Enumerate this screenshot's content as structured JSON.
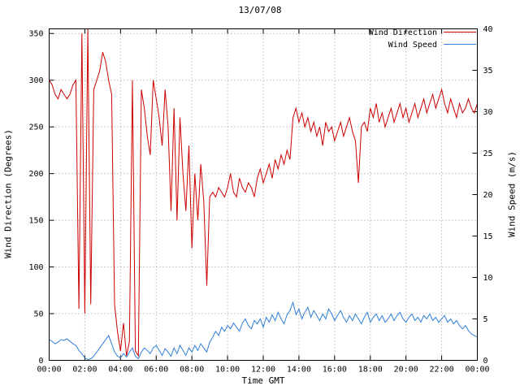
{
  "header": {
    "title": "13/07/08"
  },
  "chart_data": {
    "type": "line",
    "title": "13/07/08",
    "xlabel": "Time GMT",
    "grid": true,
    "legend_position": "top-right-inside",
    "x_range_minutes": [
      0,
      1440
    ],
    "x_tick_minutes": [
      0,
      120,
      240,
      360,
      480,
      600,
      720,
      840,
      960,
      1080,
      1200,
      1320,
      1440
    ],
    "x_tick_labels": [
      "00:00",
      "02:00",
      "04:00",
      "06:00",
      "08:00",
      "10:00",
      "12:00",
      "14:00",
      "16:00",
      "18:00",
      "20:00",
      "22:00",
      "00:00"
    ],
    "left_axis": {
      "label": "Wind Direction (Degrees)",
      "range": [
        0,
        355
      ],
      "ticks": [
        0,
        50,
        100,
        150,
        200,
        250,
        300,
        350
      ]
    },
    "right_axis": {
      "label": "Wind Speed (m/s)",
      "range": [
        0,
        40
      ],
      "ticks": [
        0,
        5,
        10,
        15,
        20,
        25,
        30,
        35,
        40
      ]
    },
    "x_minutes": [
      0,
      10,
      20,
      30,
      40,
      50,
      60,
      70,
      80,
      90,
      100,
      110,
      120,
      130,
      140,
      150,
      160,
      170,
      180,
      190,
      200,
      210,
      220,
      230,
      240,
      250,
      260,
      270,
      280,
      290,
      300,
      310,
      320,
      330,
      340,
      350,
      360,
      370,
      380,
      390,
      400,
      410,
      420,
      430,
      440,
      450,
      460,
      470,
      480,
      490,
      500,
      510,
      520,
      530,
      540,
      550,
      560,
      570,
      580,
      590,
      600,
      610,
      620,
      630,
      640,
      650,
      660,
      670,
      680,
      690,
      700,
      710,
      720,
      730,
      740,
      750,
      760,
      770,
      780,
      790,
      800,
      810,
      820,
      830,
      840,
      850,
      860,
      870,
      880,
      890,
      900,
      910,
      920,
      930,
      940,
      950,
      960,
      970,
      980,
      990,
      1000,
      1010,
      1020,
      1030,
      1040,
      1050,
      1060,
      1070,
      1080,
      1090,
      1100,
      1110,
      1120,
      1130,
      1140,
      1150,
      1160,
      1170,
      1180,
      1190,
      1200,
      1210,
      1220,
      1230,
      1240,
      1250,
      1260,
      1270,
      1280,
      1290,
      1300,
      1310,
      1320,
      1330,
      1340,
      1350,
      1360,
      1370,
      1380,
      1390,
      1400,
      1410,
      1420,
      1430,
      1440
    ],
    "series": [
      {
        "name": "Wind Direction",
        "axis": "left",
        "color": "#cc0000",
        "values": [
          300,
          295,
          285,
          280,
          290,
          285,
          280,
          285,
          295,
          300,
          55,
          350,
          50,
          355,
          60,
          290,
          300,
          310,
          330,
          320,
          300,
          285,
          60,
          30,
          10,
          40,
          5,
          20,
          300,
          10,
          5,
          290,
          270,
          240,
          220,
          300,
          280,
          260,
          230,
          290,
          250,
          160,
          270,
          150,
          260,
          200,
          160,
          230,
          120,
          200,
          150,
          210,
          170,
          80,
          175,
          180,
          175,
          185,
          180,
          175,
          185,
          200,
          180,
          175,
          195,
          185,
          180,
          190,
          185,
          175,
          195,
          205,
          190,
          200,
          210,
          195,
          215,
          205,
          220,
          210,
          225,
          215,
          260,
          270,
          255,
          265,
          250,
          260,
          245,
          255,
          240,
          250,
          230,
          255,
          245,
          250,
          235,
          245,
          255,
          240,
          250,
          260,
          245,
          235,
          190,
          250,
          255,
          245,
          270,
          260,
          275,
          255,
          265,
          250,
          260,
          270,
          255,
          265,
          275,
          260,
          270,
          255,
          265,
          275,
          260,
          270,
          280,
          265,
          275,
          285,
          270,
          280,
          290,
          275,
          265,
          280,
          270,
          260,
          275,
          265,
          270,
          280,
          270,
          265,
          275
        ]
      },
      {
        "name": "Wind Speed",
        "axis": "right",
        "color": "#2f7ed8",
        "values": [
          2.5,
          2.3,
          2.0,
          2.2,
          2.5,
          2.4,
          2.6,
          2.3,
          2.0,
          1.8,
          1.2,
          0.8,
          0.3,
          0.1,
          0.2,
          0.5,
          1.0,
          1.5,
          2.0,
          2.5,
          3.0,
          2.0,
          1.0,
          0.5,
          0.3,
          0.8,
          0.4,
          1.0,
          1.5,
          0.5,
          0.2,
          1.0,
          1.5,
          1.2,
          0.8,
          1.5,
          1.8,
          1.2,
          0.6,
          1.4,
          1.0,
          0.5,
          1.5,
          0.8,
          1.8,
          1.2,
          0.6,
          1.5,
          1.0,
          1.8,
          1.2,
          2.0,
          1.5,
          1.0,
          2.2,
          2.8,
          3.5,
          3.0,
          4.0,
          3.5,
          4.2,
          3.8,
          4.5,
          4.0,
          3.5,
          4.5,
          5.0,
          4.2,
          3.8,
          4.8,
          4.4,
          5.0,
          4.0,
          5.2,
          4.6,
          5.5,
          4.8,
          5.8,
          5.0,
          4.4,
          5.5,
          6.0,
          7.0,
          5.5,
          6.2,
          5.0,
          5.8,
          6.4,
          5.2,
          6.0,
          5.4,
          4.8,
          5.6,
          5.0,
          6.2,
          5.6,
          4.8,
          5.4,
          6.0,
          5.2,
          4.6,
          5.4,
          4.8,
          5.6,
          5.0,
          4.4,
          5.2,
          5.8,
          4.6,
          5.2,
          5.6,
          4.8,
          5.4,
          4.6,
          5.0,
          5.6,
          4.8,
          5.4,
          5.8,
          5.0,
          4.6,
          5.2,
          5.6,
          4.8,
          5.2,
          4.6,
          5.4,
          5.0,
          5.6,
          4.8,
          5.2,
          4.6,
          5.0,
          5.4,
          4.6,
          5.0,
          4.4,
          4.8,
          4.2,
          3.8,
          4.2,
          3.6,
          3.2,
          3.0,
          2.8
        ]
      }
    ],
    "style": {
      "grid_color": "#999999",
      "border_color": "#000000",
      "text_color": "#000000"
    }
  }
}
